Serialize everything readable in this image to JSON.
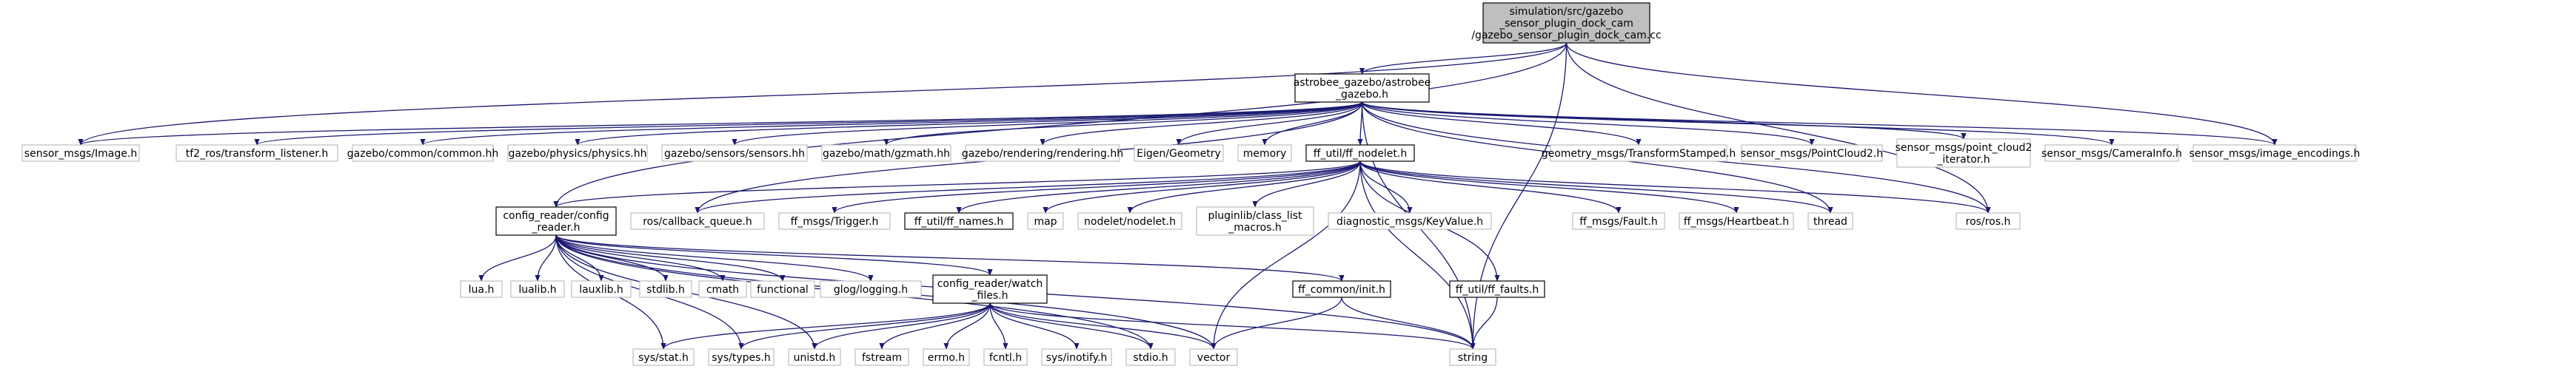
{
  "colors": {
    "edge": "#191970",
    "root_fill": "#bfbfbf",
    "light_border": "#bfbfbf",
    "dark_border": "#000000"
  },
  "nodes": {
    "root": [
      "simulation/src/gazebo",
      "_sensor_plugin_dock_cam",
      "/gazebo_sensor_plugin_dock_cam.cc"
    ],
    "astrobee_gazebo": [
      "astrobee_gazebo/astrobee",
      "_gazebo.h"
    ],
    "image_h": [
      "sensor_msgs/Image.h"
    ],
    "tf2_listener": [
      "tf2_ros/transform_listener.h"
    ],
    "gz_common": [
      "gazebo/common/common.hh"
    ],
    "gz_physics": [
      "gazebo/physics/physics.hh"
    ],
    "gz_sensors": [
      "gazebo/sensors/sensors.hh"
    ],
    "gz_math": [
      "gazebo/math/gzmath.hh"
    ],
    "gz_rendering": [
      "gazebo/rendering/rendering.hh"
    ],
    "eigen": [
      "Eigen/Geometry"
    ],
    "memory": [
      "memory"
    ],
    "ff_nodelet": [
      "ff_util/ff_nodelet.h"
    ],
    "geometry_tf": [
      "geometry_msgs/TransformStamped.h"
    ],
    "pointcloud2": [
      "sensor_msgs/PointCloud2.h"
    ],
    "pc2_iterator": [
      "sensor_msgs/point_cloud2",
      "_iterator.h"
    ],
    "camerainfo": [
      "sensor_msgs/CameraInfo.h"
    ],
    "image_encodings": [
      "sensor_msgs/image_encodings.h"
    ],
    "config_reader": [
      "config_reader/config",
      "_reader.h"
    ],
    "callback_queue": [
      "ros/callback_queue.h"
    ],
    "trigger": [
      "ff_msgs/Trigger.h"
    ],
    "ff_names": [
      "ff_util/ff_names.h"
    ],
    "map": [
      "map"
    ],
    "nodelet": [
      "nodelet/nodelet.h"
    ],
    "class_list": [
      "pluginlib/class_list",
      "_macros.h"
    ],
    "keyvalue": [
      "diagnostic_msgs/KeyValue.h"
    ],
    "fault": [
      "ff_msgs/Fault.h"
    ],
    "heartbeat": [
      "ff_msgs/Heartbeat.h"
    ],
    "thread": [
      "thread"
    ],
    "ros_h": [
      "ros/ros.h"
    ],
    "lua": [
      "lua.h"
    ],
    "lualib": [
      "lualib.h"
    ],
    "lauxlib": [
      "lauxlib.h"
    ],
    "stdlib": [
      "stdlib.h"
    ],
    "cmath": [
      "cmath"
    ],
    "functional": [
      "functional"
    ],
    "glog": [
      "glog/logging.h"
    ],
    "watch_files": [
      "config_reader/watch",
      "_files.h"
    ],
    "ff_common": [
      "ff_common/init.h"
    ],
    "ff_faults": [
      "ff_util/ff_faults.h"
    ],
    "sys_stat": [
      "sys/stat.h"
    ],
    "sys_types": [
      "sys/types.h"
    ],
    "unistd": [
      "unistd.h"
    ],
    "fstream": [
      "fstream"
    ],
    "errno": [
      "errno.h"
    ],
    "fcntl": [
      "fcntl.h"
    ],
    "inotify": [
      "sys/inotify.h"
    ],
    "stdio": [
      "stdio.h"
    ],
    "vector": [
      "vector"
    ],
    "string": [
      "string"
    ]
  }
}
